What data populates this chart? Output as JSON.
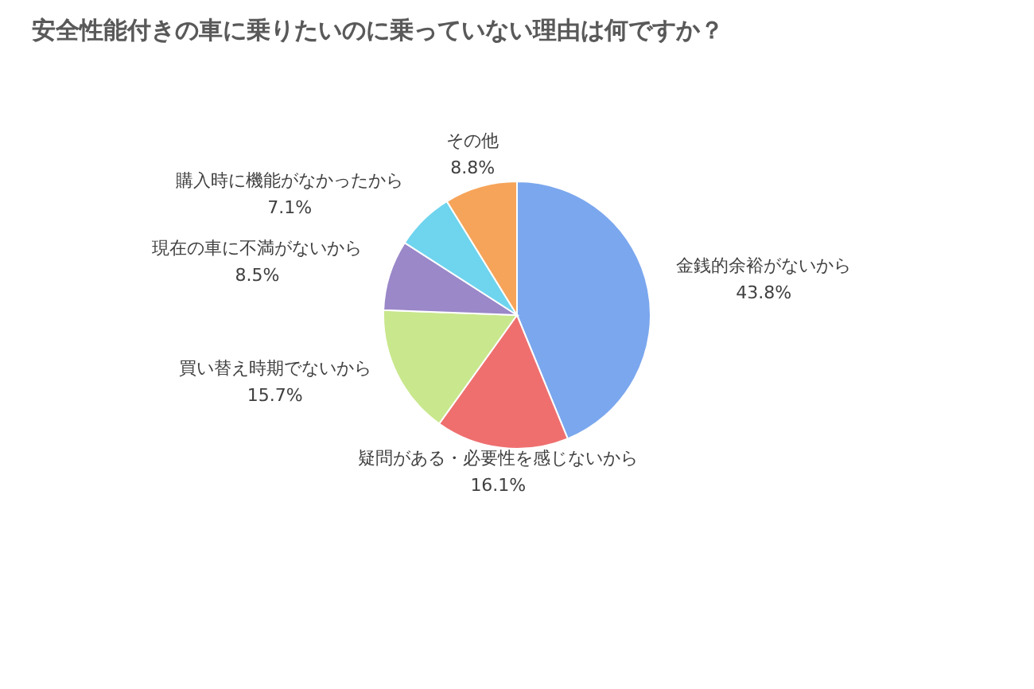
{
  "chart_data": {
    "type": "pie",
    "title": "安全性能付きの車に乗りたいのに乗っていない理由は何ですか？",
    "categories": [
      "金銭的余裕がないから",
      "疑問がある・必要性を感じないから",
      "買い替え時期でないから",
      "現在の車に不満がないから",
      "購入時に機能がなかったから",
      "その他"
    ],
    "values": [
      43.8,
      16.1,
      15.7,
      8.5,
      7.1,
      8.8
    ],
    "value_labels": [
      "43.8%",
      "16.1%",
      "15.7%",
      "8.5%",
      "7.1%",
      "8.8%"
    ],
    "colors": [
      "#7ba7ee",
      "#ef6f6f",
      "#c9e78d",
      "#9a88c9",
      "#6fd4ee",
      "#f6a45a"
    ]
  }
}
